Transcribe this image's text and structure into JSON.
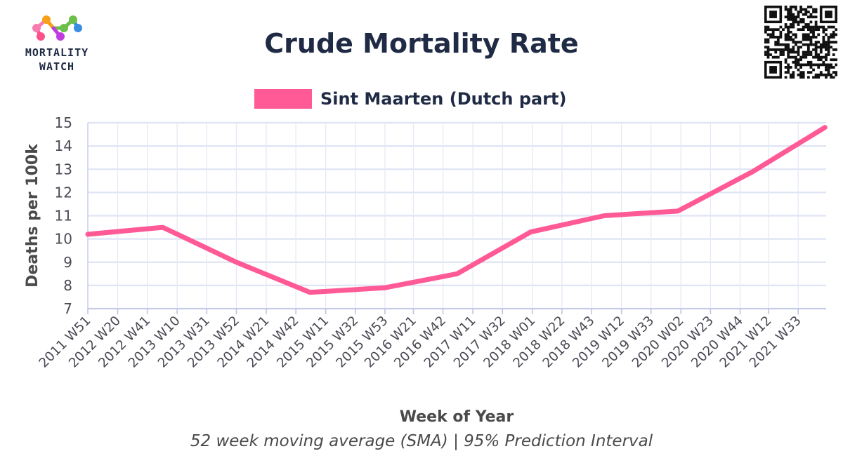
{
  "logo": {
    "line1": "MORTALITY",
    "line2": "WATCH",
    "colors": [
      "#f77db0",
      "#f7a11a",
      "#6cc04a",
      "#3b8de0",
      "#c13be0",
      "#ff4f8b"
    ]
  },
  "qr": {
    "icon": "qr-code-icon"
  },
  "chart_data": {
    "type": "line",
    "title": "Crude Mortality Rate",
    "xlabel": "Week of Year",
    "ylabel": "Deaths per 100k",
    "caption": "52 week moving average (SMA) | 95% Prediction Interval",
    "ylim": [
      7,
      15
    ],
    "yticks": [
      7,
      8,
      9,
      10,
      11,
      12,
      13,
      14,
      15
    ],
    "grid": true,
    "legend_position": "top-center",
    "x_ticks": [
      "2011 W51",
      "2012 W20",
      "2012 W41",
      "2013 W10",
      "2013 W31",
      "2013 W52",
      "2014 W21",
      "2014 W42",
      "2015 W11",
      "2015 W32",
      "2015 W53",
      "2016 W21",
      "2016 W42",
      "2017 W11",
      "2017 W32",
      "2018 W01",
      "2018 W22",
      "2018 W43",
      "2019 W12",
      "2019 W33",
      "2020 W02",
      "2020 W23",
      "2020 W44",
      "2021 W12",
      "2021 W33"
    ],
    "series": [
      {
        "name": "Sint Maarten (Dutch part)",
        "color": "#ff5a96",
        "points": [
          {
            "x": "2011 W51",
            "y": 10.2
          },
          {
            "x": "2012 W52",
            "y": 10.5
          },
          {
            "x": "2013 W52",
            "y": 9.0
          },
          {
            "x": "2014 W52",
            "y": 7.7
          },
          {
            "x": "2015 W53",
            "y": 7.9
          },
          {
            "x": "2016 W52",
            "y": 8.5
          },
          {
            "x": "2017 W52",
            "y": 10.3
          },
          {
            "x": "2018 W52",
            "y": 11.0
          },
          {
            "x": "2019 W52",
            "y": 11.2
          },
          {
            "x": "2020 W53",
            "y": 12.9
          },
          {
            "x": "2021 W52",
            "y": 14.8
          }
        ]
      }
    ]
  }
}
